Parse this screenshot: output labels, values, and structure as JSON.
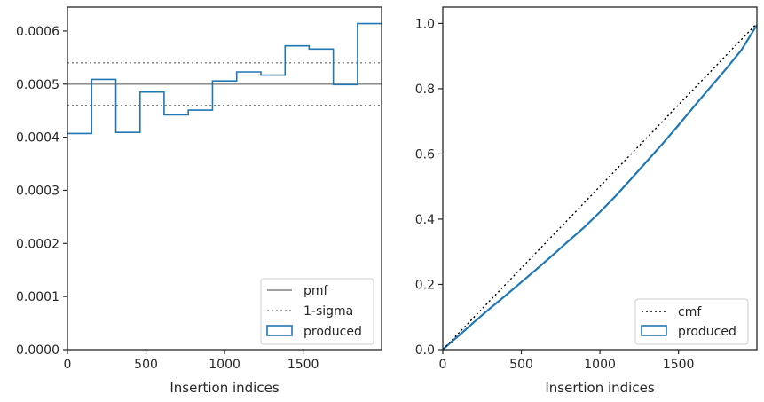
{
  "chart_data": [
    {
      "type": "histogram-step",
      "xlabel": "Insertion indices",
      "ylabel": "",
      "xlim": [
        0,
        1999
      ],
      "ylim": [
        0,
        0.000645
      ],
      "xticks": [
        0,
        500,
        1000,
        1500
      ],
      "yticks": [
        0,
        0.0001,
        0.0002,
        0.0003,
        0.0004,
        0.0005,
        0.0006
      ],
      "ytick_labels": [
        "0.0000",
        "0.0001",
        "0.0002",
        "0.0003",
        "0.0004",
        "0.0005",
        "0.0006"
      ],
      "pmf": 0.0005,
      "sigma_band": [
        0.00046,
        0.00054
      ],
      "bin_edges": [
        0,
        154,
        308,
        462,
        615,
        769,
        923,
        1077,
        1231,
        1385,
        1538,
        1692,
        1846,
        1999
      ],
      "values": [
        0.000407,
        0.000509,
        0.000409,
        0.000485,
        0.000442,
        0.000451,
        0.000506,
        0.000523,
        0.000517,
        0.000572,
        0.000566,
        0.000499,
        0.000614
      ],
      "legend": {
        "position": "lower right",
        "entries": [
          {
            "label": "pmf",
            "style": "solid",
            "color": "#808080"
          },
          {
            "label": "1-sigma",
            "style": "dotted",
            "color": "#808080"
          },
          {
            "label": "produced",
            "style": "patch",
            "color": "#1f77b4"
          }
        ]
      }
    },
    {
      "type": "line",
      "xlabel": "Insertion indices",
      "ylabel": "",
      "xlim": [
        0,
        1999
      ],
      "ylim": [
        0,
        1.05
      ],
      "xticks": [
        0,
        500,
        1000,
        1500
      ],
      "yticks": [
        0,
        0.2,
        0.4,
        0.6,
        0.8,
        1.0
      ],
      "ytick_labels": [
        "0.0",
        "0.2",
        "0.4",
        "0.6",
        "0.8",
        "1.0"
      ],
      "cmf": {
        "x": [
          0,
          1999
        ],
        "y": [
          0,
          1.0
        ]
      },
      "produced": {
        "x": [
          0,
          50,
          100,
          200,
          300,
          400,
          500,
          600,
          700,
          800,
          900,
          1000,
          1100,
          1200,
          1300,
          1400,
          1500,
          1600,
          1700,
          1800,
          1900,
          1999
        ],
        "y": [
          0,
          0.022,
          0.042,
          0.085,
          0.126,
          0.166,
          0.207,
          0.248,
          0.29,
          0.333,
          0.375,
          0.422,
          0.471,
          0.524,
          0.578,
          0.632,
          0.688,
          0.746,
          0.803,
          0.859,
          0.918,
          0.995
        ]
      },
      "legend": {
        "position": "lower right",
        "entries": [
          {
            "label": "cmf",
            "style": "dotted",
            "color": "#000000"
          },
          {
            "label": "produced",
            "style": "patch",
            "color": "#1f77b4"
          }
        ]
      }
    }
  ]
}
